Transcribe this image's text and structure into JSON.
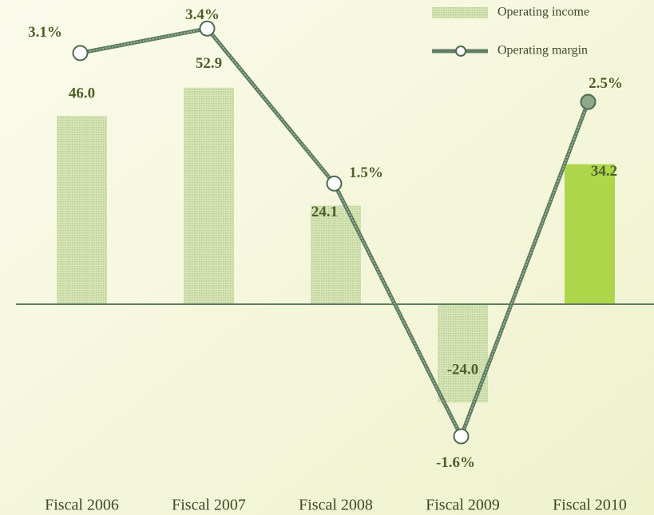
{
  "chart_data": {
    "type": "bar",
    "categories": [
      "Fiscal 2006",
      "Fiscal 2007",
      "Fiscal 2008",
      "Fiscal 2009",
      "Fiscal 2010"
    ],
    "ylim": [
      -46.6,
      74.3
    ],
    "y2lim": [
      -2.32,
      3.75
    ],
    "series": [
      {
        "name": "Operating income",
        "type": "bar",
        "color": "#c9dca2",
        "colors": [
          "#c9dca2",
          "#c9dca2",
          "#c9dca2",
          "#c9dca2",
          "#aed64a"
        ],
        "values": [
          46.0,
          52.9,
          24.1,
          -24.0,
          34.2
        ],
        "value_labels": [
          "46.0",
          "52.9",
          "24.1",
          "-24.0",
          "34.2"
        ]
      },
      {
        "name": "Operating margin",
        "type": "line",
        "axis": "y2",
        "color": "#5f7d62",
        "marker_colors": [
          "#ffffff",
          "#ffffff",
          "#ffffff",
          "#ffffff",
          "#8fa88a"
        ],
        "values": [
          3.1,
          3.4,
          1.5,
          -1.6,
          2.5
        ],
        "value_labels": [
          "3.1%",
          "3.4%",
          "1.5%",
          "-1.6%",
          "2.5%"
        ]
      }
    ],
    "legend": "top-right"
  }
}
